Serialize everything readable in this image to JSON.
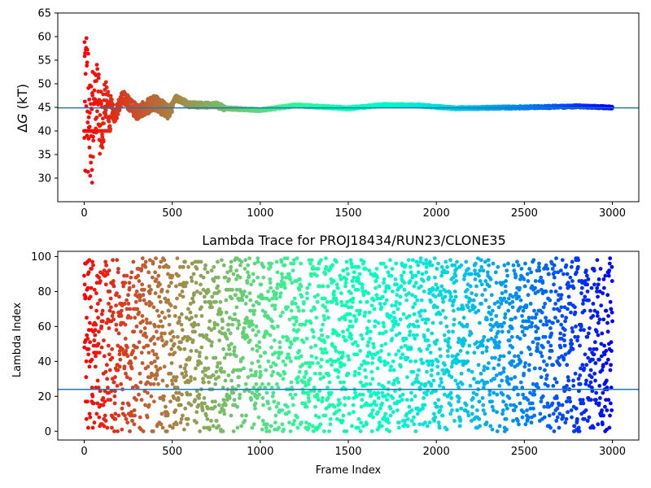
{
  "chart_data": [
    {
      "type": "scatter",
      "title": "",
      "xlabel": "",
      "ylabel": "ΔG (kT)",
      "ylabel_symbol": "Δ",
      "ylabel_var": "G",
      "ylabel_unit": " (kT)",
      "xlim": [
        -150,
        3150
      ],
      "ylim": [
        25,
        65
      ],
      "xticks": [
        0,
        500,
        1000,
        1500,
        2000,
        2500,
        3000
      ],
      "yticks": [
        30,
        35,
        40,
        45,
        50,
        55,
        60,
        65
      ],
      "xtick_labels": [
        "0",
        "500",
        "1000",
        "1500",
        "2000",
        "2500",
        "3000"
      ],
      "ytick_labels": [
        "30",
        "35",
        "40",
        "45",
        "50",
        "55",
        "60",
        "65"
      ],
      "hline": 44.9,
      "hline_color": "#1f77b4",
      "colormap": "rainbow (red at frame 0 to violet at frame 3000)",
      "series": [
        {
          "description": "running free-energy estimate per frame",
          "x_range": [
            0,
            3000
          ],
          "n_points": 3001,
          "anchors": [
            [
              0,
              50
            ],
            [
              10,
              60
            ],
            [
              30,
              40
            ],
            [
              45,
              30
            ],
            [
              60,
              56
            ],
            [
              80,
              36
            ],
            [
              100,
              51
            ],
            [
              120,
              40
            ],
            [
              140,
              49
            ],
            [
              170,
              43
            ],
            [
              220,
              47
            ],
            [
              300,
              44
            ],
            [
              400,
              46
            ],
            [
              480,
              44
            ],
            [
              520,
              47
            ],
            [
              600,
              45.5
            ],
            [
              750,
              45.5
            ],
            [
              800,
              44.8
            ],
            [
              1000,
              44.4
            ],
            [
              1200,
              45.4
            ],
            [
              1500,
              44.8
            ],
            [
              1700,
              45.5
            ],
            [
              1900,
              45.4
            ],
            [
              2100,
              44.8
            ],
            [
              2300,
              44.9
            ],
            [
              2500,
              45.0
            ],
            [
              2800,
              45.2
            ],
            [
              3000,
              45.0
            ]
          ]
        }
      ],
      "grid": false,
      "legend": "none"
    },
    {
      "type": "scatter",
      "title": "Lambda Trace for PROJ18434/RUN23/CLONE35",
      "xlabel": "Frame Index",
      "ylabel": "Lambda Index",
      "xlim": [
        -150,
        3150
      ],
      "ylim": [
        -5,
        103
      ],
      "xticks": [
        0,
        500,
        1000,
        1500,
        2000,
        2500,
        3000
      ],
      "yticks": [
        0,
        20,
        40,
        60,
        80,
        100
      ],
      "xtick_labels": [
        "0",
        "500",
        "1000",
        "1500",
        "2000",
        "2500",
        "3000"
      ],
      "ytick_labels": [
        "0",
        "20",
        "40",
        "60",
        "80",
        "100"
      ],
      "hline": 24,
      "hline_color": "#1f77b4",
      "colormap": "rainbow (red at frame 0 to violet at frame 3000)",
      "series": [
        {
          "description": "lambda index visited per frame, roughly uniform over 0-99",
          "x_range": [
            0,
            3000
          ],
          "y_range": [
            0,
            99
          ],
          "n_points": 3001
        }
      ],
      "grid": false,
      "legend": "none"
    }
  ]
}
